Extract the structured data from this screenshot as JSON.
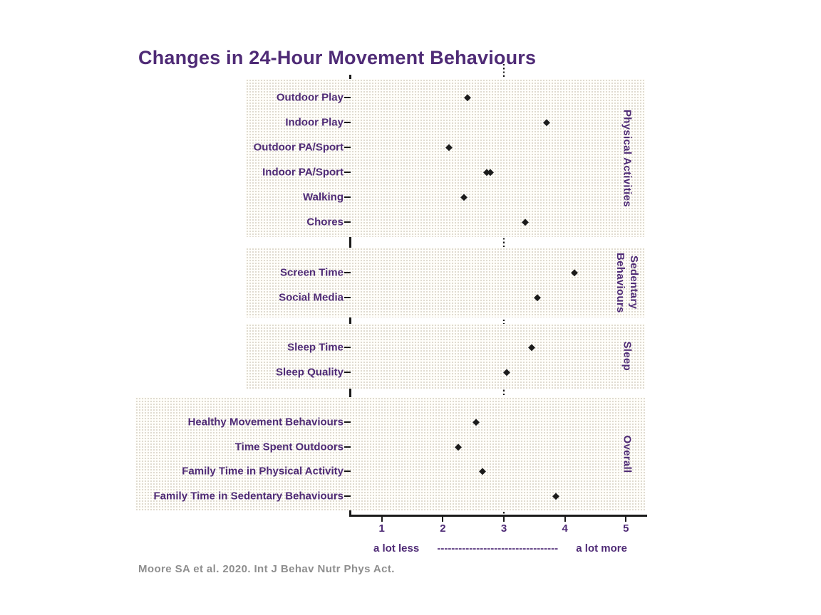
{
  "source": "Moore SA et al. 2020. Int J Behav Nutr Phys Act.",
  "colors": {
    "accent_purple": "#4f2b76",
    "marker_black": "#1b1b1b",
    "panel_dot": "#d5cfc2",
    "source_gray": "#8e8e8e"
  },
  "chart_data": {
    "type": "scatter",
    "title": "Changes in 24-Hour Movement Behaviours",
    "xlim": [
      1,
      5
    ],
    "xticks": [
      "1",
      "2",
      "3",
      "4",
      "5"
    ],
    "reference_x": 3,
    "grid": false,
    "legend": "none",
    "xlabel_left": "a lot less",
    "xlabel_dashes": "----------------------------------",
    "xlabel_right": "a lot more",
    "groups": [
      {
        "name": "Physical Activities",
        "items": [
          {
            "label": "Outdoor Play",
            "value": 2.4
          },
          {
            "label": "Indoor Play",
            "value": 3.7
          },
          {
            "label": "Outdoor PA/Sport",
            "value": 2.1
          },
          {
            "label": "Indoor PA/Sport",
            "value": 2.75,
            "marker": "double"
          },
          {
            "label": "Walking",
            "value": 2.35
          },
          {
            "label": "Chores",
            "value": 3.35
          }
        ]
      },
      {
        "name": "Sedentary Behaviours",
        "items": [
          {
            "label": "Screen Time",
            "value": 4.15
          },
          {
            "label": "Social Media",
            "value": 3.55
          }
        ]
      },
      {
        "name": "Sleep",
        "items": [
          {
            "label": "Sleep Time",
            "value": 3.45
          },
          {
            "label": "Sleep Quality",
            "value": 3.05
          }
        ]
      },
      {
        "name": "Overall",
        "items": [
          {
            "label": "Healthy Movement Behaviours",
            "value": 2.55
          },
          {
            "label": "Time Spent Outdoors",
            "value": 2.25
          },
          {
            "label": "Family Time in Physical Activity",
            "value": 2.65
          },
          {
            "label": "Family Time in Sedentary Behaviours",
            "value": 3.85
          }
        ]
      }
    ]
  }
}
